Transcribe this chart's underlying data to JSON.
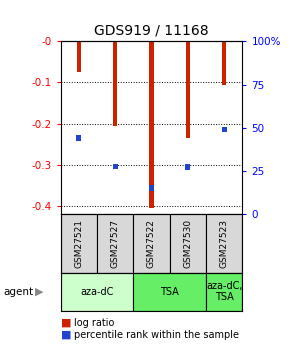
{
  "title": "GDS919 / 11168",
  "samples": [
    "GSM27521",
    "GSM27527",
    "GSM27522",
    "GSM27530",
    "GSM27523"
  ],
  "log_ratios": [
    -0.075,
    -0.205,
    -0.405,
    -0.235,
    -0.105
  ],
  "percentile_ranks": [
    0.44,
    0.275,
    0.15,
    0.27,
    0.49
  ],
  "ylim_left": [
    -0.42,
    0.0
  ],
  "yticks_left": [
    0.0,
    -0.1,
    -0.2,
    -0.3,
    -0.4
  ],
  "ytick_labels_left": [
    "-0",
    "-0.1",
    "-0.2",
    "-0.3",
    "-0.4"
  ],
  "ytick_labels_right": [
    "0",
    "25",
    "50",
    "75",
    "100%"
  ],
  "bar_color": "#cc2200",
  "marker_color": "#2244cc",
  "bar_width": 0.12,
  "agent_groups": [
    {
      "label": "aza-dC",
      "start": 0,
      "end": 2,
      "color": "#ccffcc"
    },
    {
      "label": "TSA",
      "start": 2,
      "end": 4,
      "color": "#66ee66"
    },
    {
      "label": "aza-dC,\nTSA",
      "start": 4,
      "end": 5,
      "color": "#66ee66"
    }
  ],
  "legend_items": [
    {
      "color": "#cc2200",
      "label": "log ratio"
    },
    {
      "color": "#2244cc",
      "label": "percentile rank within the sample"
    }
  ]
}
